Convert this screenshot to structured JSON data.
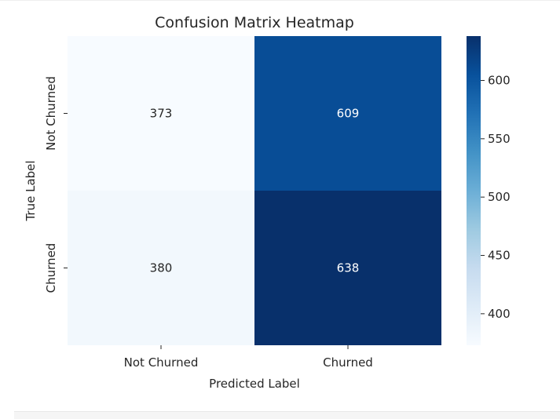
{
  "chart_data": {
    "type": "heatmap",
    "title": "Confusion Matrix Heatmap",
    "xlabel": "Predicted Label",
    "ylabel": "True Label",
    "x_categories": [
      "Not Churned",
      "Churned"
    ],
    "y_categories": [
      "Not Churned",
      "Churned"
    ],
    "values": [
      [
        373,
        609
      ],
      [
        380,
        638
      ]
    ],
    "colormap": "Blues",
    "colorbar": {
      "min": 373,
      "max": 638,
      "ticks": [
        400,
        450,
        500,
        550,
        600
      ]
    },
    "grid": false,
    "legend": "colorbar-right"
  }
}
